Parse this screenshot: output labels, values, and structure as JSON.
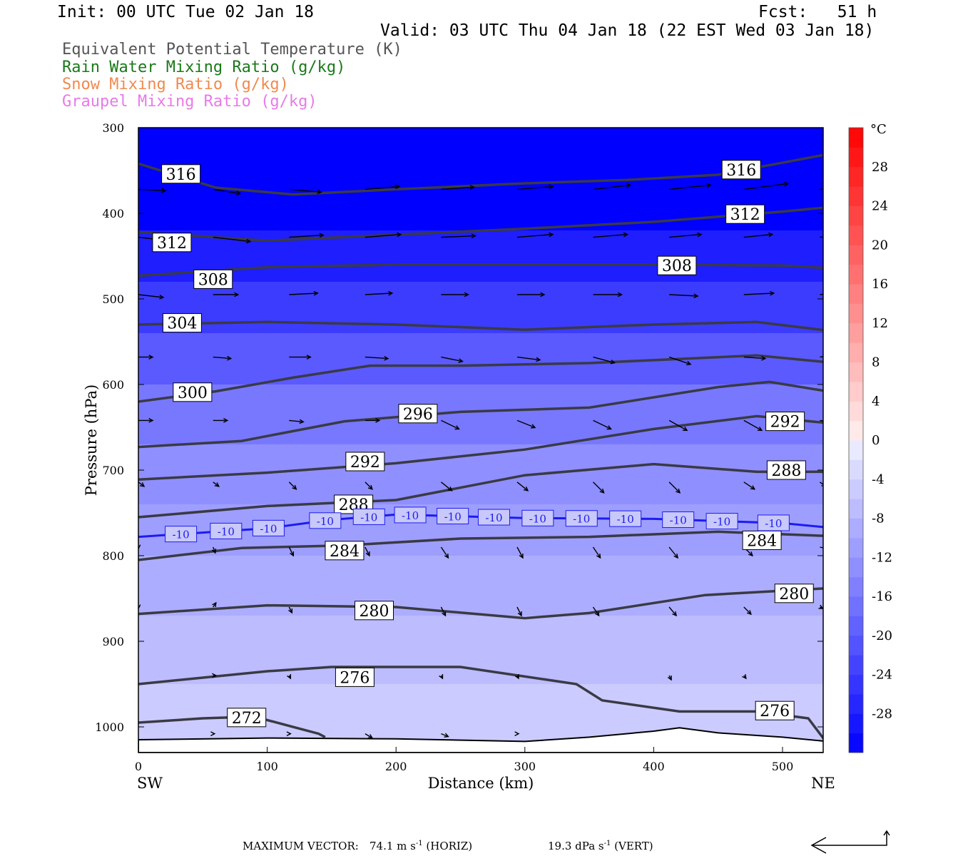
{
  "header": {
    "init": "Init: 00 UTC Tue 02 Jan 18",
    "fcst": "Fcst:   51 h",
    "valid": "Valid: 03 UTC Thu 04 Jan 18 (22 EST Wed 03 Jan 18)"
  },
  "legend": [
    {
      "text": "Equivalent Potential Temperature (K)",
      "color": "#555555"
    },
    {
      "text": "Rain Water Mixing Ratio (g/kg)",
      "color": "#1a7a1a"
    },
    {
      "text": "Snow Mixing Ratio (g/kg)",
      "color": "#f08a50"
    },
    {
      "text": "Graupel Mixing Ratio (g/kg)",
      "color": "#e87ae8"
    }
  ],
  "footer": {
    "max_vector_label": "MAXIMUM VECTOR:",
    "horiz": "74.1 m s",
    "horiz_unit": "(HORIZ)",
    "vert": "19.3 dPa s",
    "vert_unit": "(VERT)",
    "exp": "-1"
  },
  "chart_data": {
    "type": "heatmap",
    "xlabel": "Distance (km)",
    "ylabel": "Pressure (hPa)",
    "x_left_label": "SW",
    "x_right_label": "NE",
    "xlim": [
      0,
      535
    ],
    "ylim": [
      1030,
      300
    ],
    "xticks": [
      0,
      100,
      200,
      300,
      400,
      500
    ],
    "yticks": [
      300,
      400,
      500,
      600,
      700,
      800,
      900,
      1000
    ],
    "colorbar": {
      "unit": "°C",
      "labels": [
        28,
        24,
        20,
        16,
        12,
        8,
        4,
        0,
        -4,
        -8,
        -12,
        -16,
        -20,
        -24,
        -28
      ],
      "range": [
        -32,
        32
      ]
    },
    "temperature_fill": [
      {
        "p": 300,
        "t": -32
      },
      {
        "p": 420,
        "t": -28
      },
      {
        "p": 480,
        "t": -24
      },
      {
        "p": 540,
        "t": -20
      },
      {
        "p": 600,
        "t": -16
      },
      {
        "p": 670,
        "t": -13
      },
      {
        "p": 740,
        "t": -11
      },
      {
        "p": 800,
        "t": -9
      },
      {
        "p": 870,
        "t": -7
      },
      {
        "p": 950,
        "t": -5
      },
      {
        "p": 1030,
        "t": -3
      }
    ],
    "theta_e_contours": [
      {
        "level": 316,
        "x": [
          0,
          60,
          120,
          200,
          300,
          380,
          450,
          535
        ],
        "p": [
          342,
          370,
          378,
          372,
          365,
          361,
          355,
          331
        ],
        "labels": [
          [
            33,
            354
          ],
          [
            468,
            349
          ]
        ]
      },
      {
        "level": 312,
        "x": [
          0,
          60,
          100,
          200,
          300,
          400,
          500,
          535
        ],
        "p": [
          422,
          428,
          432,
          425,
          418,
          410,
          398,
          393
        ],
        "labels": [
          [
            26,
            434
          ],
          [
            471,
            401
          ]
        ]
      },
      {
        "level": 308,
        "x": [
          0,
          100,
          200,
          300,
          400,
          500,
          535
        ],
        "p": [
          473,
          463,
          460,
          460,
          460,
          461,
          464
        ],
        "labels": [
          [
            58,
            477
          ],
          [
            418,
            461
          ]
        ]
      },
      {
        "level": 304,
        "x": [
          0,
          100,
          200,
          300,
          400,
          480,
          535
        ],
        "p": [
          530,
          527,
          530,
          536,
          530,
          527,
          537
        ],
        "labels": [
          [
            34,
            528
          ]
        ]
      },
      {
        "level": 300,
        "x": [
          0,
          60,
          120,
          180,
          250,
          350,
          480,
          535
        ],
        "p": [
          620,
          608,
          592,
          578,
          578,
          575,
          566,
          574
        ],
        "labels": [
          [
            42,
            609
          ]
        ]
      },
      {
        "level": 296,
        "x": [
          0,
          80,
          160,
          250,
          350,
          450,
          490,
          535
        ],
        "p": [
          673,
          666,
          643,
          632,
          627,
          603,
          597,
          608
        ],
        "labels": [
          [
            217,
            634
          ]
        ]
      },
      {
        "level": 292,
        "x": [
          0,
          100,
          200,
          300,
          400,
          480,
          535
        ],
        "p": [
          711,
          703,
          692,
          676,
          652,
          637,
          645
        ],
        "labels": [
          [
            176,
            690
          ],
          [
            502,
            643
          ]
        ]
      },
      {
        "level": 288,
        "x": [
          0,
          100,
          200,
          300,
          400,
          480,
          535
        ],
        "p": [
          755,
          742,
          735,
          706,
          693,
          702,
          702
        ],
        "labels": [
          [
            167,
            740
          ],
          [
            503,
            700
          ]
        ]
      },
      {
        "level": 284,
        "x": [
          0,
          80,
          160,
          250,
          350,
          450,
          535
        ],
        "p": [
          805,
          791,
          788,
          780,
          778,
          772,
          777
        ],
        "labels": [
          [
            160,
            794
          ],
          [
            484,
            782
          ]
        ]
      },
      {
        "level": 280,
        "x": [
          0,
          100,
          200,
          300,
          350,
          440,
          535
        ],
        "p": [
          868,
          858,
          860,
          873,
          867,
          846,
          838
        ],
        "labels": [
          [
            183,
            864
          ],
          [
            509,
            844
          ]
        ]
      },
      {
        "level": 276,
        "x": [
          0,
          100,
          150,
          250,
          340,
          360,
          420,
          480,
          520,
          535
        ],
        "p": [
          950,
          935,
          930,
          930,
          950,
          969,
          982,
          982,
          990,
          1020
        ],
        "labels": [
          [
            168,
            942
          ],
          [
            494,
            981
          ]
        ]
      },
      {
        "level": 272,
        "x": [
          0,
          50,
          90,
          140,
          145
        ],
        "p": [
          995,
          990,
          988,
          1008,
          1012
        ],
        "labels": [
          [
            84,
            989
          ]
        ]
      }
    ],
    "isotherm": {
      "level": -10,
      "label": "-10",
      "color": "#1c1cf0",
      "x": [
        0,
        100,
        150,
        200,
        300,
        400,
        500,
        535
      ],
      "p": [
        778,
        768,
        758,
        752,
        756,
        757,
        762,
        767
      ],
      "labels": [
        33,
        68,
        101,
        145,
        179,
        211,
        244,
        276,
        310,
        344,
        378,
        419,
        453,
        493
      ]
    },
    "terrain": {
      "x": [
        0,
        100,
        200,
        300,
        350,
        400,
        420,
        450,
        500,
        535
      ],
      "p": [
        1015,
        1013,
        1014,
        1017,
        1012,
        1005,
        1001,
        1007,
        1012,
        1017
      ]
    },
    "wind_vectors": [
      {
        "p": 372,
        "x": [
          0,
          58,
          117,
          176,
          235,
          294,
          353,
          412,
          470,
          529
        ],
        "dx": [
          38,
          38,
          45,
          48,
          46,
          50,
          52,
          58,
          62,
          58
        ],
        "dy": [
          2,
          6,
          4,
          -4,
          -3,
          -4,
          -6,
          -6,
          -8,
          -6
        ]
      },
      {
        "p": 428,
        "x": [
          0,
          58,
          117,
          176,
          235,
          294,
          353,
          412,
          470,
          529
        ],
        "dx": [
          35,
          52,
          48,
          50,
          48,
          50,
          48,
          45,
          40,
          38
        ],
        "dy": [
          4,
          6,
          -3,
          -4,
          -2,
          -4,
          -4,
          -4,
          -4,
          -2
        ]
      },
      {
        "p": 495,
        "x": [
          0,
          58,
          117,
          176,
          235,
          294,
          353,
          412,
          470,
          529
        ],
        "dx": [
          35,
          35,
          40,
          38,
          38,
          38,
          40,
          40,
          42,
          40
        ],
        "dy": [
          4,
          0,
          -2,
          -2,
          0,
          0,
          0,
          2,
          -2,
          -4
        ]
      },
      {
        "p": 568,
        "x": [
          0,
          58,
          117,
          176,
          235,
          294,
          353,
          412,
          470,
          529
        ],
        "dx": [
          20,
          25,
          30,
          32,
          30,
          32,
          30,
          30,
          30,
          30
        ],
        "dy": [
          0,
          2,
          0,
          2,
          6,
          4,
          8,
          10,
          2,
          -4
        ]
      },
      {
        "p": 642,
        "x": [
          0,
          58,
          117,
          176,
          235,
          294,
          353,
          412,
          470,
          529
        ],
        "dx": [
          20,
          20,
          20,
          20,
          25,
          25,
          25,
          25,
          25,
          15
        ],
        "dy": [
          0,
          0,
          2,
          0,
          12,
          10,
          12,
          14,
          14,
          2
        ]
      },
      {
        "p": 714,
        "x": [
          0,
          58,
          117,
          176,
          235,
          294,
          353,
          412,
          470,
          529
        ],
        "dx": [
          8,
          8,
          10,
          10,
          15,
          15,
          15,
          15,
          15,
          8
        ],
        "dy": [
          6,
          6,
          10,
          10,
          12,
          12,
          15,
          15,
          10,
          6
        ]
      },
      {
        "p": 790,
        "x": [
          0,
          58,
          117,
          176,
          235,
          294,
          353,
          412,
          470,
          529
        ],
        "dx": [
          0,
          3,
          6,
          6,
          10,
          8,
          10,
          12,
          12,
          10
        ],
        "dy": [
          2,
          8,
          12,
          12,
          15,
          15,
          15,
          15,
          12,
          2
        ]
      },
      {
        "p": 860,
        "x": [
          0,
          58,
          117,
          176,
          235,
          294,
          353,
          412,
          470,
          529
        ],
        "dx": [
          0,
          4,
          4,
          6,
          6,
          6,
          8,
          10,
          10,
          4
        ],
        "dy": [
          2,
          -6,
          8,
          12,
          12,
          12,
          12,
          12,
          10,
          2
        ]
      },
      {
        "p": 940,
        "x": [
          58,
          117,
          176,
          235,
          294,
          412,
          470
        ],
        "dx": [
          4,
          2,
          2,
          2,
          2,
          3,
          3
        ],
        "dy": [
          0,
          4,
          4,
          4,
          4,
          6,
          4
        ]
      },
      {
        "p": 1008,
        "x": [
          58,
          117,
          176,
          235,
          294
        ],
        "dx": [
          2,
          2,
          10,
          10,
          2
        ],
        "dy": [
          0,
          0,
          6,
          4,
          0
        ]
      }
    ]
  }
}
